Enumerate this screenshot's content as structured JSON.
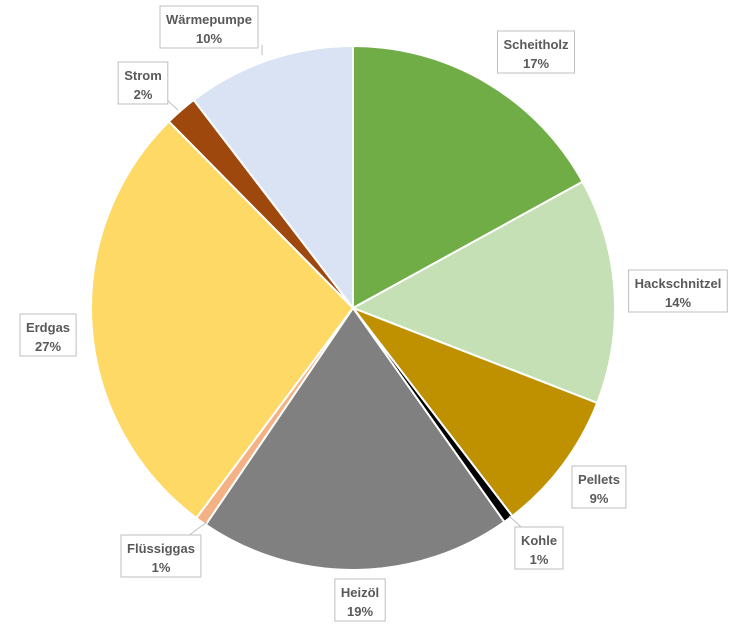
{
  "chart_data": {
    "type": "pie",
    "title": "",
    "start_angle_deg": 0,
    "direction": "clockwise",
    "legend": "none",
    "slices": [
      {
        "label": "Scheitholz",
        "pct_label": "17%",
        "value": 17.0,
        "color": "#70AD47"
      },
      {
        "label": "Hackschnitzel",
        "pct_label": "14%",
        "value": 13.9,
        "color": "#C5E0B4"
      },
      {
        "label": "Pellets",
        "pct_label": "9%",
        "value": 8.7,
        "color": "#BF9000"
      },
      {
        "label": "Kohle",
        "pct_label": "1%",
        "value": 0.6,
        "color": "#000000"
      },
      {
        "label": "Heizöl",
        "pct_label": "19%",
        "value": 19.3,
        "color": "#808080"
      },
      {
        "label": "Flüssiggas",
        "pct_label": "1%",
        "value": 0.7,
        "color": "#F4B183"
      },
      {
        "label": "Erdgas",
        "pct_label": "27%",
        "value": 27.4,
        "color": "#FFD966"
      },
      {
        "label": "Strom",
        "pct_label": "2%",
        "value": 2.0,
        "color": "#9E480E"
      },
      {
        "label": "Wärmepumpe",
        "pct_label": "10%",
        "value": 10.4,
        "color": "#DAE3F3"
      }
    ]
  }
}
